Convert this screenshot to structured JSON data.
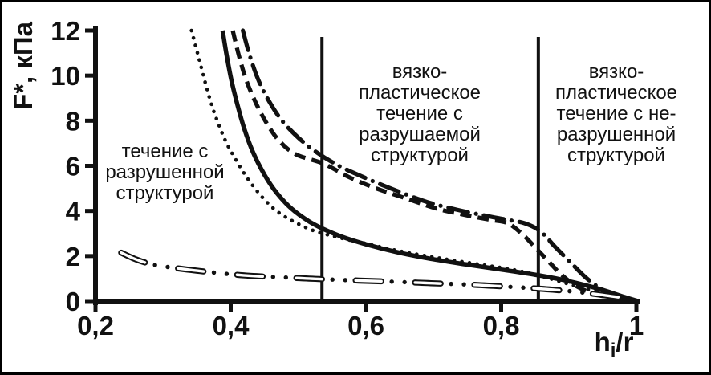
{
  "figure": {
    "background": "#ffffff",
    "border_color": "#000000",
    "ink_color": "#111111"
  },
  "chart_data": {
    "type": "line",
    "title": "",
    "xlabel": "hi/r",
    "xlabel_parts": {
      "base": "h",
      "sub": "i",
      "rest": "/r"
    },
    "ylabel": "F*, кПа",
    "xlim": [
      0.2,
      1
    ],
    "ylim": [
      0,
      12
    ],
    "grid": false,
    "legend": "none",
    "x_ticks": {
      "values": [
        0.2,
        0.4,
        0.6,
        0.8,
        1
      ],
      "labels": [
        "0,2",
        "0,4",
        "0,6",
        "0,8",
        "1"
      ]
    },
    "y_ticks": {
      "values": [
        0,
        2,
        4,
        6,
        8,
        10,
        12
      ],
      "labels": [
        "0",
        "2",
        "4",
        "6",
        "8",
        "10",
        "12"
      ]
    },
    "region_boundaries_x": [
      0.535,
      0.855
    ],
    "region_labels": [
      {
        "text": "течение с\nразрушенной\nструктурой",
        "x_range": [
          0.2,
          0.535
        ]
      },
      {
        "text": "вязко-\nпластическое\nтечение с\nразрушаемой\nструктурой",
        "x_range": [
          0.535,
          0.855
        ]
      },
      {
        "text": "вязко-\nпластическое\nтечение с не-\nразрушенной\nструктурой",
        "x_range": [
          0.855,
          1.0
        ]
      }
    ],
    "series": [
      {
        "name": "dotted-curve",
        "style": "dotted",
        "points": [
          [
            0.342,
            12
          ],
          [
            0.35,
            11.1
          ],
          [
            0.357,
            10.3
          ],
          [
            0.365,
            9.4
          ],
          [
            0.374,
            8.5
          ],
          [
            0.384,
            7.7
          ],
          [
            0.394,
            7.0
          ],
          [
            0.406,
            6.35
          ],
          [
            0.418,
            5.75
          ],
          [
            0.432,
            5.15
          ],
          [
            0.45,
            4.5
          ],
          [
            0.47,
            3.95
          ],
          [
            0.495,
            3.5
          ],
          [
            0.525,
            3.1
          ],
          [
            0.56,
            2.82
          ],
          [
            0.6,
            2.55
          ],
          [
            0.65,
            2.22
          ],
          [
            0.71,
            1.9
          ],
          [
            0.77,
            1.62
          ],
          [
            0.82,
            1.38
          ],
          [
            0.86,
            1.1
          ],
          [
            0.895,
            0.8
          ],
          [
            0.93,
            0.5
          ],
          [
            0.965,
            0.25
          ],
          [
            1.0,
            0.03
          ]
        ]
      },
      {
        "name": "solid-curve",
        "style": "solid",
        "points": [
          [
            0.388,
            12
          ],
          [
            0.394,
            10.9
          ],
          [
            0.401,
            9.8
          ],
          [
            0.41,
            8.7
          ],
          [
            0.42,
            7.65
          ],
          [
            0.433,
            6.6
          ],
          [
            0.45,
            5.6
          ],
          [
            0.468,
            4.8
          ],
          [
            0.49,
            4.1
          ],
          [
            0.515,
            3.55
          ],
          [
            0.537,
            3.2
          ],
          [
            0.565,
            2.85
          ],
          [
            0.6,
            2.52
          ],
          [
            0.645,
            2.18
          ],
          [
            0.695,
            1.88
          ],
          [
            0.75,
            1.62
          ],
          [
            0.8,
            1.4
          ],
          [
            0.85,
            1.17
          ],
          [
            0.89,
            0.95
          ],
          [
            0.925,
            0.7
          ],
          [
            0.955,
            0.45
          ],
          [
            0.98,
            0.2
          ],
          [
            1.0,
            0.02
          ]
        ]
      },
      {
        "name": "short-dash-curve",
        "style": "dashed",
        "points": [
          [
            0.403,
            12
          ],
          [
            0.412,
            10.9
          ],
          [
            0.423,
            9.8
          ],
          [
            0.437,
            8.8
          ],
          [
            0.453,
            7.9
          ],
          [
            0.472,
            7.1
          ],
          [
            0.497,
            6.5
          ],
          [
            0.537,
            6.1
          ],
          [
            0.575,
            5.5
          ],
          [
            0.615,
            5.0
          ],
          [
            0.66,
            4.55
          ],
          [
            0.705,
            4.1
          ],
          [
            0.75,
            3.8
          ],
          [
            0.785,
            3.6
          ],
          [
            0.81,
            3.45
          ],
          [
            0.832,
            2.95
          ],
          [
            0.853,
            2.3
          ],
          [
            0.872,
            1.7
          ],
          [
            0.89,
            1.15
          ],
          [
            0.912,
            0.65
          ],
          [
            0.94,
            0.3
          ],
          [
            0.97,
            0.12
          ],
          [
            1.0,
            0.02
          ]
        ]
      },
      {
        "name": "dash-dot-curve",
        "style": "dashdot",
        "points": [
          [
            0.418,
            12
          ],
          [
            0.428,
            10.9
          ],
          [
            0.441,
            9.8
          ],
          [
            0.457,
            8.85
          ],
          [
            0.476,
            8.0
          ],
          [
            0.5,
            7.25
          ],
          [
            0.527,
            6.6
          ],
          [
            0.56,
            6.0
          ],
          [
            0.6,
            5.45
          ],
          [
            0.645,
            4.9
          ],
          [
            0.69,
            4.4
          ],
          [
            0.735,
            4.05
          ],
          [
            0.775,
            3.8
          ],
          [
            0.81,
            3.6
          ],
          [
            0.835,
            3.45
          ],
          [
            0.858,
            3.1
          ],
          [
            0.88,
            2.4
          ],
          [
            0.9,
            1.8
          ],
          [
            0.925,
            1.05
          ],
          [
            0.95,
            0.5
          ],
          [
            0.975,
            0.15
          ],
          [
            1.0,
            0.02
          ]
        ]
      },
      {
        "name": "open-dash-dot-dot-curve",
        "style": "open-dash-dot-dot",
        "points": [
          [
            0.238,
            2.15
          ],
          [
            0.26,
            1.85
          ],
          [
            0.285,
            1.62
          ],
          [
            0.315,
            1.48
          ],
          [
            0.35,
            1.35
          ],
          [
            0.39,
            1.22
          ],
          [
            0.43,
            1.12
          ],
          [
            0.48,
            1.05
          ],
          [
            0.53,
            0.98
          ],
          [
            0.58,
            0.92
          ],
          [
            0.64,
            0.86
          ],
          [
            0.7,
            0.79
          ],
          [
            0.76,
            0.72
          ],
          [
            0.82,
            0.62
          ],
          [
            0.87,
            0.52
          ],
          [
            0.915,
            0.4
          ],
          [
            0.955,
            0.25
          ],
          [
            1.0,
            0.05
          ]
        ]
      }
    ]
  }
}
